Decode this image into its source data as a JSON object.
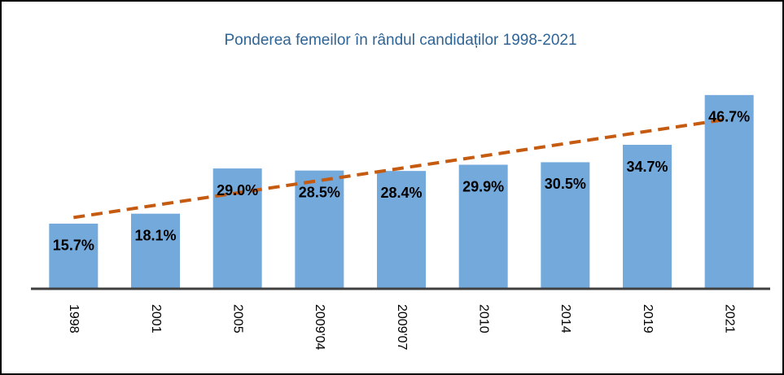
{
  "chart_data": {
    "type": "bar",
    "title": "Ponderea femeilor în rândul candidaților 1998-2021",
    "categories": [
      "1998",
      "2001",
      "2005",
      "2009'04",
      "2009'07",
      "2010",
      "2014",
      "2019",
      "2021"
    ],
    "values": [
      15.7,
      18.1,
      29.0,
      28.5,
      28.4,
      29.9,
      30.5,
      34.7,
      46.7
    ],
    "value_labels": [
      "15.7%",
      "18.1%",
      "29.0%",
      "28.5%",
      "28.4%",
      "29.9%",
      "30.5%",
      "34.7%",
      "46.7%"
    ],
    "color": "#74a9dc",
    "ylim": [
      0,
      50
    ],
    "trendline": true,
    "trendline_color": "#c55a11"
  }
}
